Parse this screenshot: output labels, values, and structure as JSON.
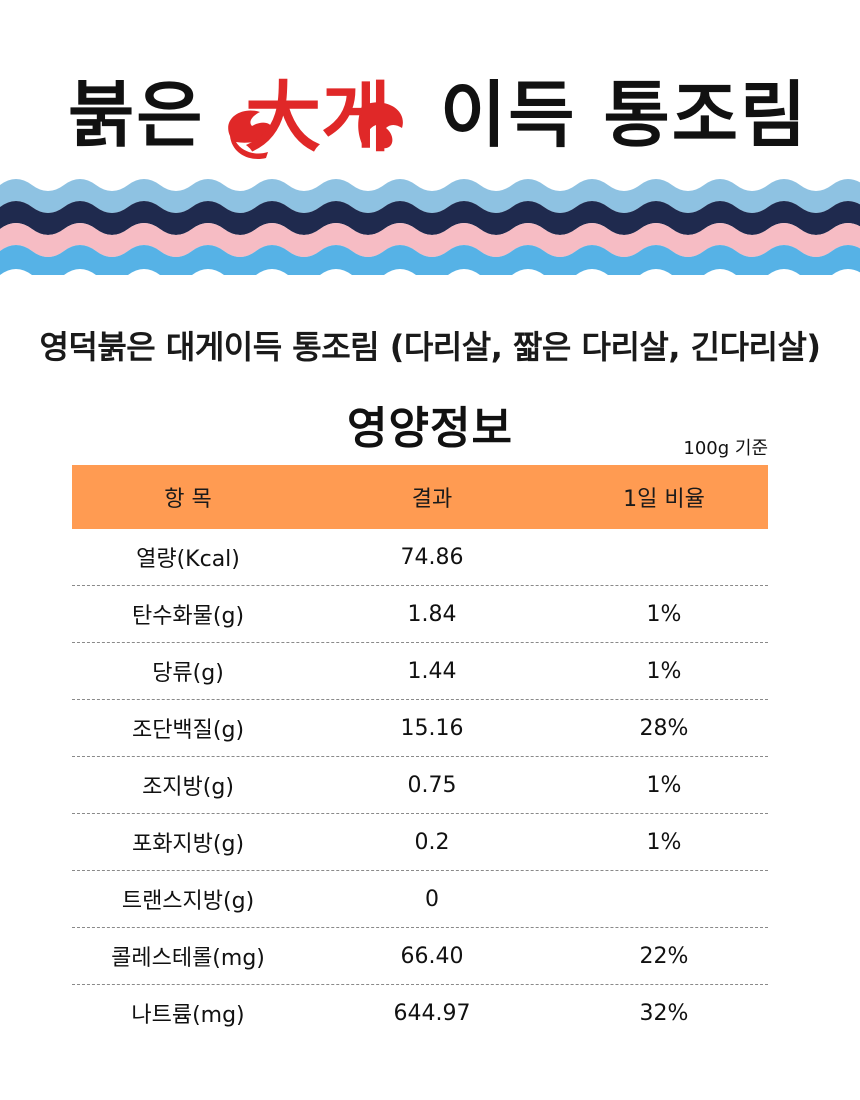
{
  "header": {
    "title_left": "붉은",
    "title_brand": "大게",
    "title_right": "이득 통조림"
  },
  "product": {
    "name": "영덕붉은 대게이득 통조림 (다리살, 짧은 다리살, 긴다리살)"
  },
  "nutrition": {
    "section_title": "영양정보",
    "basis": "100g 기준",
    "columns": [
      "항 목",
      "결과",
      "1일 비율"
    ],
    "rows": [
      {
        "item": "열량(Kcal)",
        "result": "74.86",
        "daily": ""
      },
      {
        "item": "탄수화물(g)",
        "result": "1.84",
        "daily": "1%"
      },
      {
        "item": "당류(g)",
        "result": "1.44",
        "daily": "1%"
      },
      {
        "item": "조단백질(g)",
        "result": "15.16",
        "daily": "28%"
      },
      {
        "item": "조지방(g)",
        "result": "0.75",
        "daily": "1%"
      },
      {
        "item": "포화지방(g)",
        "result": "0.2",
        "daily": "1%"
      },
      {
        "item": "트랜스지방(g)",
        "result": "0",
        "daily": ""
      },
      {
        "item": "콜레스테롤(mg)",
        "result": "66.40",
        "daily": "22%"
      },
      {
        "item": "나트륨(mg)",
        "result": "644.97",
        "daily": "32%"
      }
    ]
  },
  "colors": {
    "header_orange": "#ff9b52",
    "brand_red": "#e02828",
    "wave_light_blue": "#8ec2e2",
    "wave_navy": "#1f2a4e",
    "wave_pink": "#f6bcc4",
    "wave_blue": "#56b2e6"
  },
  "icons": {
    "crab_claws": "crab-claw-icon"
  }
}
